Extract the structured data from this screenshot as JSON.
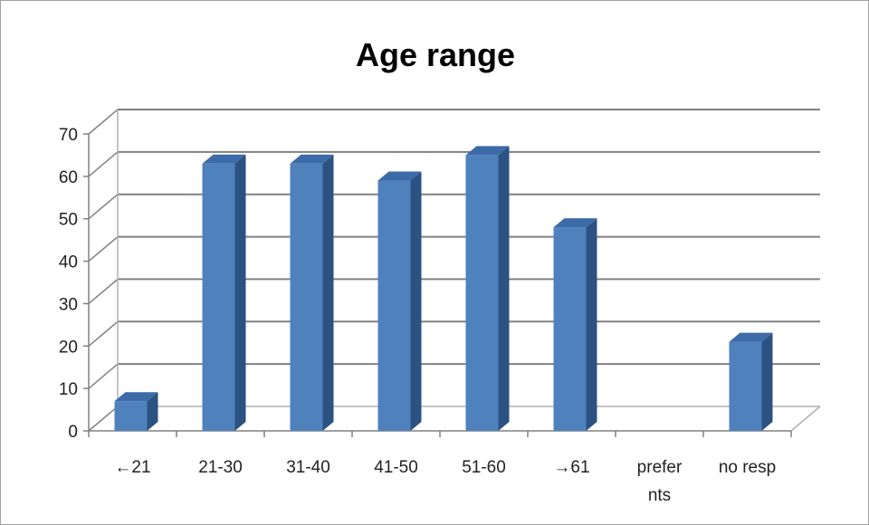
{
  "chart_data": {
    "type": "bar",
    "title": "Age range",
    "categories": [
      "←21",
      "21-30",
      "31-40",
      "41-50",
      "51-60",
      "→61",
      "prefer\nnts",
      "no resp"
    ],
    "series": [
      {
        "values": [
          7,
          63,
          63,
          59,
          65,
          48,
          0,
          21
        ]
      }
    ],
    "ylim": [
      0,
      70
    ],
    "yticks": [
      0,
      10,
      20,
      30,
      40,
      50,
      60,
      70
    ],
    "grid": true,
    "legend": "none",
    "style": "3d-column",
    "colors": {
      "bar_front": "#4F81BD",
      "bar_side": "#2C5282",
      "bar_top": "#3D6BA8",
      "grid": "#808080",
      "text": "#222222"
    }
  }
}
